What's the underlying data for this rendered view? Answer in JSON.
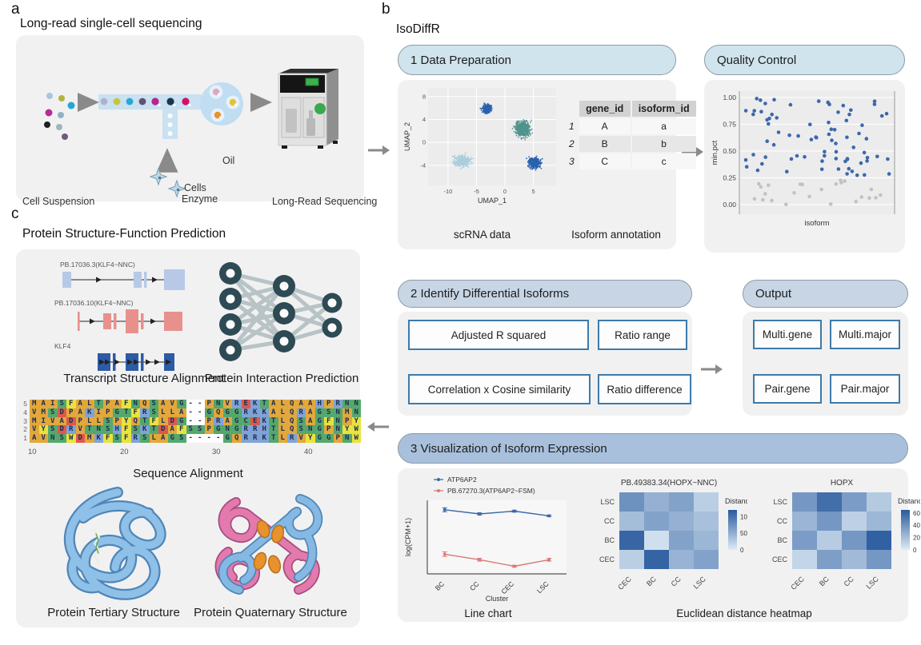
{
  "panel_a": {
    "label": "a",
    "title": "Long-read single-cell sequencing",
    "cell_suspension_label": "Cell Suspension",
    "oil_label": "Oil",
    "cells_label": "Cells",
    "enzyme_label": "Enzyme",
    "sequencing_label": "Long-Read Sequencing"
  },
  "panel_b": {
    "label": "b",
    "title": "IsoDiffR",
    "step1": {
      "header": "1 Data Preparation",
      "scrna_caption": "scRNA data",
      "isoform_caption": "Isoform annotation",
      "table": {
        "headers": [
          "gene_id",
          "isoform_id"
        ],
        "rows": [
          [
            "1",
            "A",
            "a"
          ],
          [
            "2",
            "B",
            "b"
          ],
          [
            "3",
            "C",
            "c"
          ]
        ]
      }
    },
    "qc": {
      "header": "Quality Control"
    },
    "step2": {
      "header": "2 Identify Differential Isoforms",
      "boxes": [
        "Adjusted R squared",
        "Ratio range",
        "Correlation x Cosine similarity",
        "Ratio difference"
      ]
    },
    "output": {
      "header": "Output",
      "boxes": [
        "Multi.gene",
        "Multi.major",
        "Pair.gene",
        "Pair.major"
      ]
    },
    "step3": {
      "header": "3 Visualization of Isoform Expression",
      "line_caption": "Line chart",
      "heatmap_caption": "Euclidean distance heatmap"
    }
  },
  "panel_c": {
    "label": "c",
    "title": "Protein Structure-Function Prediction",
    "transcripts": [
      {
        "name": "PB.17036.3(KLF4~NNC)",
        "color": "#b7c9e6"
      },
      {
        "name": "PB.17036.10(KLF4~NNC)",
        "color": "#e8918c"
      },
      {
        "name": "KLF4",
        "color": "#2d5ba5"
      }
    ],
    "transcript_caption": "Transcript Structure Alignment",
    "nn_caption": "Protein Interaction Prediction",
    "alignment": {
      "caption": "Sequence Alignment",
      "ticks": [
        "10",
        "20",
        "30",
        "40"
      ],
      "tick_cols": [
        0,
        10,
        20,
        30
      ],
      "rows": [
        {
          "num": "5",
          "seq": "MAISFALTPAFNQSAVG--PNVREKTALQAAHPRNN"
        },
        {
          "num": "4",
          "seq": "VMSDPAKIPGTFRSLLA--GQGGRKKALQRAGSNMN"
        },
        {
          "num": "3",
          "seq": "MIVADPLLSPYQTFLDG--PRAGCEKTLQSAGFNPY"
        },
        {
          "num": "2",
          "seq": "VYSDRVTNSHFSKTDAFSSPGNGRRHTLQSNGPNYW"
        },
        {
          "num": "1",
          "seq": "AVNSWDMKFSFRSLAGS----GQRRKTLRVYGGPNW"
        }
      ],
      "colors": {
        "RKH": "#7fa3d7",
        "DE": "#de584c",
        "STGNC": "#55a86d",
        "FYW": "#e9e23f",
        "default": "#e2a83c",
        "gap": "#ffffff"
      }
    },
    "tertiary_caption": "Protein Tertiary Structure",
    "quaternary_caption": "Protein Quaternary Structure"
  },
  "chart_data": [
    {
      "id": "umap",
      "type": "scatter",
      "title": "scRNA data",
      "xlabel": "UMAP_1",
      "ylabel": "UMAP_2",
      "xticks": [
        -10,
        -5,
        0,
        5
      ],
      "yticks": [
        8,
        4,
        0,
        -4
      ],
      "xlim": [
        -13.5,
        9
      ],
      "ylim": [
        -7.5,
        9.5
      ],
      "clusters": [
        {
          "name": "top-blue",
          "color": "#2a62ae",
          "cx": -3.2,
          "cy": 5.9,
          "sx": 1.1,
          "sy": 1.0,
          "n": 280
        },
        {
          "name": "right-teal",
          "color": "#50938c",
          "cx": 3.2,
          "cy": 2.4,
          "sx": 1.7,
          "sy": 1.9,
          "n": 520
        },
        {
          "name": "bottom-right-blue",
          "color": "#2a62ae",
          "cx": 5.2,
          "cy": -3.6,
          "sx": 1.5,
          "sy": 1.3,
          "n": 340
        },
        {
          "name": "bottom-left-lightblue",
          "color": "#abcede",
          "cx": -7.5,
          "cy": -3.2,
          "sx": 2.0,
          "sy": 1.3,
          "n": 380
        }
      ]
    },
    {
      "id": "qc",
      "type": "scatter",
      "xlabel": "isoform",
      "ylabel": "min.pct",
      "yticks": [
        1.0,
        0.75,
        0.5,
        0.25,
        0.0
      ],
      "threshold": 0.25,
      "n_pass": 78,
      "n_fail": 24,
      "pass_color": "#3b68aa",
      "fail_color": "#c2c2c2"
    },
    {
      "id": "line",
      "type": "line",
      "categories": [
        "BC",
        "CC",
        "CEC",
        "LSC"
      ],
      "xlabel": "Cluster",
      "ylabel": "log(CPM+1)",
      "ylim": [
        0,
        5.3
      ],
      "series": [
        {
          "name": "ATP6AP2",
          "color": "#3b68aa",
          "values": [
            4.62,
            4.32,
            4.52,
            4.18
          ],
          "err": [
            0.14,
            0.08,
            0.07,
            0.06
          ]
        },
        {
          "name": "PB.67270.3(ATP6AP2~FSM)",
          "color": "#d97a74",
          "values": [
            1.42,
            1.02,
            0.55,
            1.02
          ],
          "err": [
            0.16,
            0.1,
            0.07,
            0.1
          ]
        }
      ]
    },
    {
      "id": "heatmap1",
      "type": "heatmap",
      "title": "PB.49383.34(HOPX~NNC)",
      "rows": [
        "LSC",
        "CC",
        "BC",
        "CEC"
      ],
      "cols": [
        "CEC",
        "BC",
        "CC",
        "LSC"
      ],
      "values": [
        [
          75,
          50,
          62,
          25
        ],
        [
          40,
          62,
          50,
          37
        ],
        [
          110,
          12,
          62,
          45
        ],
        [
          25,
          112,
          48,
          62
        ]
      ],
      "legend_title": "Distance",
      "legend_ticks": [
        100,
        50,
        0
      ],
      "vmax": 120
    },
    {
      "id": "heatmap2",
      "type": "heatmap",
      "title": "HOPX",
      "rows": [
        "LSC",
        "CC",
        "BC",
        "CEC"
      ],
      "cols": [
        "CEC",
        "BC",
        "CC",
        "LSC"
      ],
      "values": [
        [
          380,
          560,
          360,
          160
        ],
        [
          250,
          380,
          130,
          240
        ],
        [
          360,
          150,
          380,
          620
        ],
        [
          110,
          350,
          230,
          380
        ]
      ],
      "legend_title": "Distance",
      "legend_ticks": [
        600,
        400,
        200,
        0
      ],
      "vmax": 650
    }
  ]
}
